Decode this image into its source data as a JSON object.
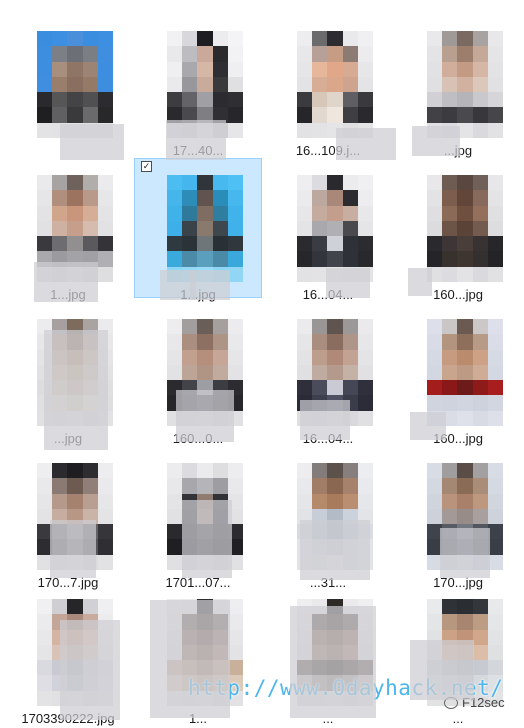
{
  "files": [
    {
      "name": "",
      "selected": false,
      "colors": [
        "#3b8de0",
        "#3d8fe2",
        "#4a8fd9",
        "#3b8de0",
        "#3d8fe2",
        "#3e8ee0",
        "#7c7f86",
        "#6c6f75",
        "#7b7e83",
        "#3f8ee0",
        "#3d8ee0",
        "#a88e7c",
        "#8f7565",
        "#9b8474",
        "#3d8ee0",
        "#3f8ee0",
        "#9a7e6c",
        "#8a6f60",
        "#957a68",
        "#3e8ee0",
        "#2a2a2e",
        "#565656",
        "#444447",
        "#505052",
        "#2c2c30",
        "#1f1f22",
        "#606062",
        "#3a3a3c",
        "#6a6a6c",
        "#28282b",
        "#e3e3e6",
        "#e2e2e5",
        "#e4e4e7",
        "#e1e1e4",
        "#e3e3e6"
      ]
    },
    {
      "name": "17...40...",
      "selected": false,
      "colors": [
        "#f1f1f3",
        "#d8d8dc",
        "#1e1e22",
        "#ececef",
        "#f4f4f6",
        "#e9e9ec",
        "#bdbdc1",
        "#caa99a",
        "#2a2a2d",
        "#f2f2f4",
        "#efeff2",
        "#a9a9ad",
        "#d6b6a5",
        "#2f2f33",
        "#efeff1",
        "#eaeaed",
        "#98989c",
        "#c9ab9b",
        "#3a3a3d",
        "#e0e0e3",
        "#3d3d41",
        "#646468",
        "#a0a0a4",
        "#2c2c30",
        "#2f2f33",
        "#2a2a2e",
        "#4a4a4e",
        "#7f7f83",
        "#303034",
        "#27272b",
        "#dcdce0",
        "#d2d2d6",
        "#e5e5e8",
        "#cfcfd3",
        "#e6e6e9"
      ]
    },
    {
      "name": "16...109.j...",
      "selected": false,
      "colors": [
        "#ededf0",
        "#6b6b6e",
        "#2d2d31",
        "#e9e9ec",
        "#f0f0f2",
        "#e8e8eb",
        "#b7a097",
        "#c69d84",
        "#8c7b72",
        "#ececef",
        "#e6e6e9",
        "#e6b79a",
        "#e0a888",
        "#d7aa94",
        "#e7e7ea",
        "#e3e3e6",
        "#d7ad96",
        "#dba78b",
        "#cfa48f",
        "#e4e4e7",
        "#3b3b3f",
        "#d7c7b9",
        "#e0d5cb",
        "#5f5f63",
        "#3a3a3e",
        "#26262a",
        "#e1d8cf",
        "#efe6de",
        "#3f3f43",
        "#2a2a2e",
        "#e2e2e5",
        "#e3e3e6",
        "#e5e5e8",
        "#e0e0e3",
        "#e4e4e7"
      ]
    },
    {
      "name": "...jpg",
      "selected": false,
      "colors": [
        "#e9e9ec",
        "#9f9a98",
        "#7a6a61",
        "#a8a3a1",
        "#e8e8eb",
        "#e4e4e7",
        "#b99f90",
        "#9d7d6c",
        "#c4a898",
        "#e5e5e8",
        "#e2e2e5",
        "#d0ae9b",
        "#c39a84",
        "#d6b7a6",
        "#e3e3e6",
        "#e0e0e3",
        "#d8c2b6",
        "#d1b1a0",
        "#dcc7bb",
        "#e1e1e4",
        "#d1d1d5",
        "#bfbfc3",
        "#b5b5b9",
        "#c9c9cd",
        "#d6d6da",
        "#414146",
        "#3c3c40",
        "#4a4a4e",
        "#38383c",
        "#45454a",
        "#e1e1e4",
        "#dcdce0",
        "#e4e4e7",
        "#dadade",
        "#e2e2e5"
      ]
    },
    {
      "name": "1...jpg",
      "selected": false,
      "colors": [
        "#eaeaed",
        "#a6a3a2",
        "#6f625c",
        "#b1adab",
        "#ebebee",
        "#e6e6e9",
        "#b08f7e",
        "#9b735e",
        "#b8998a",
        "#e7e7ea",
        "#e3e3e6",
        "#d1a58c",
        "#c9967b",
        "#d6ae98",
        "#e4e4e7",
        "#e1e1e4",
        "#cfb1a1",
        "#c59f8b",
        "#d5bcaf",
        "#e2e2e5",
        "#3a3a3e",
        "#6d6d71",
        "#918f8f",
        "#5a5a5e",
        "#343438",
        "#a9a9ad",
        "#9b9b9f",
        "#a3a3a7",
        "#a1a1a5",
        "#b0b0b4",
        "#dddde0",
        "#d8d8dc",
        "#e0e0e3",
        "#d6d6da",
        "#dedee1"
      ]
    },
    {
      "name": "1...jpg",
      "selected": true,
      "colors": [
        "#4cbdf1",
        "#45b6ee",
        "#30353a",
        "#48b9ef",
        "#4fc0f3",
        "#45b5ec",
        "#2d8cb8",
        "#61544e",
        "#2a8cb9",
        "#47b8ee",
        "#3fb2ea",
        "#2f7a9b",
        "#7f6d61",
        "#2f7d9f",
        "#41b3eb",
        "#3eb0e9",
        "#394349",
        "#8a7a6d",
        "#3e474d",
        "#40b1ea",
        "#2f3a40",
        "#2c3338",
        "#6f767a",
        "#2a3136",
        "#30383d",
        "#3aa9dc",
        "#4c8ba7",
        "#5a9fbd",
        "#4a8aa6",
        "#3ba8dc",
        "#8fd6f5",
        "#94d8f6",
        "#9bdbf7",
        "#8ed5f5",
        "#91d7f5"
      ]
    },
    {
      "name": "16...04...",
      "selected": false,
      "colors": [
        "#eeeef1",
        "#dcdce0",
        "#2a2a2e",
        "#ececef",
        "#f0f0f2",
        "#ebebee",
        "#bca89e",
        "#a9887a",
        "#2c2c30",
        "#ededf0",
        "#e7e7ea",
        "#c5ab9d",
        "#c39e8c",
        "#c7aea1",
        "#e8e8eb",
        "#e4e4e7",
        "#a9a9ad",
        "#b0b0b4",
        "#4a4a4e",
        "#e5e5e8",
        "#2b2b2f",
        "#3a3c44",
        "#cfd1d8",
        "#2f3139",
        "#2c2c30",
        "#27272b",
        "#33353d",
        "#42444c",
        "#2f3139",
        "#29292d",
        "#e2e2e5",
        "#e3e3e6",
        "#e5e5e8",
        "#e1e1e4",
        "#e4e4e7"
      ]
    },
    {
      "name": "160...jpg",
      "selected": false,
      "colors": [
        "#e8e8eb",
        "#6e5b51",
        "#5a4840",
        "#70605a",
        "#e7e7ea",
        "#e3e3e6",
        "#7d5e4e",
        "#62463a",
        "#876a5b",
        "#e4e4e7",
        "#dfdfe2",
        "#8c6a58",
        "#6f4f3f",
        "#936f5c",
        "#e0e0e3",
        "#dcdcdf",
        "#6c5447",
        "#5b4337",
        "#735b4f",
        "#dddde0",
        "#2a2a2e",
        "#3e3636",
        "#4a3e3a",
        "#383233",
        "#27272b",
        "#252529",
        "#38322f",
        "#3e3531",
        "#343030",
        "#242428",
        "#e0e0e3",
        "#dcdce0",
        "#e3e3e6",
        "#dadade",
        "#e1e1e4"
      ]
    },
    {
      "name": "...jpg",
      "selected": false,
      "colors": [
        "#ececef",
        "#a6a0a0",
        "#7d6b5e",
        "#a9a3a1",
        "#ebebee",
        "#e7e7ea",
        "#b69d8b",
        "#8e7463",
        "#bba596",
        "#e8e8eb",
        "#e4e4e7",
        "#c3ab97",
        "#b8987f",
        "#c9b3a1",
        "#e5e5e8",
        "#e1e1e4",
        "#d0bca9",
        "#c7af98",
        "#d4c3b2",
        "#e2e2e5",
        "#dddde0",
        "#d6c9bb",
        "#cdbba9",
        "#dbcdc0",
        "#dfdfe2",
        "#e0e0e3",
        "#e4dbd2",
        "#dccfc2",
        "#e6ddd5",
        "#dedee1",
        "#e1e1e4",
        "#dfdfe2",
        "#e3e3e6",
        "#dcdcdf",
        "#e2e2e5"
      ]
    },
    {
      "name": "160...0...",
      "selected": false,
      "colors": [
        "#ededf0",
        "#a29e9e",
        "#6a5e58",
        "#a5a09e",
        "#ececef",
        "#e8e8eb",
        "#aa8f80",
        "#8d7062",
        "#ae9485",
        "#e9e9ec",
        "#e5e5e8",
        "#c1a090",
        "#b68f7c",
        "#c6a696",
        "#e6e6e9",
        "#e2e2e5",
        "#bca497",
        "#b09484",
        "#c1aa9e",
        "#e3e3e6",
        "#2b2b2f",
        "#43434a",
        "#9d9da4",
        "#3c3c43",
        "#2d2d31",
        "#26262a",
        "#3a3a40",
        "#4a4a50",
        "#36363b",
        "#28282c",
        "#e0e0e3",
        "#dedee1",
        "#e3e3e6",
        "#dbdbdf",
        "#e1e1e4"
      ]
    },
    {
      "name": "16...04...",
      "selected": false,
      "colors": [
        "#ebebee",
        "#9a9696",
        "#5f5450",
        "#9d9898",
        "#eaeaed",
        "#e6e6e9",
        "#a98e80",
        "#8a6d5e",
        "#ae9587",
        "#e7e7ea",
        "#e3e3e6",
        "#bd9d8c",
        "#b08978",
        "#c2a393",
        "#e4e4e7",
        "#e0e0e3",
        "#c0aba0",
        "#b39a8c",
        "#c5b2a7",
        "#e1e1e4",
        "#2e2f3a",
        "#4a4c5c",
        "#c9cad3",
        "#454756",
        "#2f303b",
        "#2a2b36",
        "#3d3f4e",
        "#4f5162",
        "#3a3c4a",
        "#2b2c37",
        "#dfdfe2",
        "#dcdce0",
        "#e2e2e5",
        "#d9d9dd",
        "#e0e0e3"
      ]
    },
    {
      "name": "160...jpg",
      "selected": false,
      "colors": [
        "#dde0ea",
        "#cbc6c6",
        "#6b5a52",
        "#cdc8c8",
        "#dde0ea",
        "#d9dce7",
        "#b3957f",
        "#8e6f5b",
        "#b89b86",
        "#dadde8",
        "#d5d9e4",
        "#c79b7f",
        "#bb8b6e",
        "#cca185",
        "#d6dae5",
        "#d3d7e2",
        "#c9a58e",
        "#bd9a83",
        "#ceac96",
        "#d4d8e3",
        "#a31d1d",
        "#8b1818",
        "#6c1a1a",
        "#8f1a1a",
        "#a81e1e",
        "#d0d4df",
        "#cfd3de",
        "#d1d5e0",
        "#ced2dd",
        "#d2d6e1",
        "#dcdfe8",
        "#dadde6",
        "#dee1ea",
        "#d8dbe4",
        "#dde0e9"
      ]
    },
    {
      "name": "170...7.jpg",
      "selected": false,
      "colors": [
        "#eeeef0",
        "#2b2b2f",
        "#1e1e22",
        "#2d2d31",
        "#ededf0",
        "#e9e9ec",
        "#8b7a73",
        "#6d5b52",
        "#8f7f78",
        "#eaeaed",
        "#e6e6e9",
        "#b59a8b",
        "#a4826f",
        "#b99f91",
        "#e7e7ea",
        "#e3e3e6",
        "#c6ad9f",
        "#b79886",
        "#cab4a8",
        "#e4e4e7",
        "#3a3a3e",
        "#6c6c70",
        "#8f8d8e",
        "#646468",
        "#36363a",
        "#2d2d31",
        "#5a5a5e",
        "#7a787a",
        "#56565a",
        "#2f2f33",
        "#e1e1e4",
        "#dfdfe2",
        "#e4e4e7",
        "#dcdcdf",
        "#e2e2e5"
      ]
    },
    {
      "name": "1701...07...",
      "selected": false,
      "colors": [
        "#ececef",
        "#dcdce0",
        "#ebebee",
        "#dedee1",
        "#ededf0",
        "#e8e8eb",
        "#a8a8ac",
        "#b5b5b9",
        "#9e9ea2",
        "#e9e9ec",
        "#e4e4e7",
        "#333337",
        "#8f7b70",
        "#323236",
        "#e5e5e8",
        "#e1e1e4",
        "#2d2d31",
        "#a18a7c",
        "#2e2e32",
        "#e2e2e5",
        "#2a2a2e",
        "#222226",
        "#3a3a3e",
        "#242428",
        "#2c2c30",
        "#1f1f23",
        "#1c1c20",
        "#2b2b2f",
        "#1e1e22",
        "#202024",
        "#e0e0e3",
        "#dcdce0",
        "#e3e3e6",
        "#dadade",
        "#e1e1e4"
      ]
    },
    {
      "name": "...31...",
      "selected": false,
      "colors": [
        "#ededf0",
        "#827c7b",
        "#5d514c",
        "#867f7e",
        "#ecedf0",
        "#e8e9ec",
        "#a17d67",
        "#8a6750",
        "#a6826c",
        "#e9eaed",
        "#e5e6e9",
        "#b58a6b",
        "#a77b5c",
        "#ba8f71",
        "#e6e7ea",
        "#e2e3e6",
        "#c7ced8",
        "#b3bbc7",
        "#cbd2dc",
        "#e3e4e7",
        "#d6dbe3",
        "#c2c9d3",
        "#b0b8c4",
        "#c6cdd7",
        "#d8dde5",
        "#e0e3e8",
        "#d5dae2",
        "#cdd3dc",
        "#d9dee5",
        "#e1e4e9",
        "#e2e3e6",
        "#dfe0e3",
        "#e4e5e8",
        "#dcdde0",
        "#e3e4e7"
      ]
    },
    {
      "name": "170...jpg",
      "selected": false,
      "colors": [
        "#d8dde5",
        "#a09d9f",
        "#5a4d47",
        "#a3a0a2",
        "#d8dde5",
        "#d4d9e1",
        "#a58873",
        "#8a6b56",
        "#aa8d78",
        "#d5dae2",
        "#d0d5dd",
        "#b9937b",
        "#a9816a",
        "#bd987f",
        "#d1d6de",
        "#cdd2da",
        "#a39a98",
        "#978c88",
        "#a8a09e",
        "#ced3db",
        "#3e434c",
        "#565b64",
        "#737780",
        "#51565f",
        "#3c414a",
        "#383d46",
        "#4a4f58",
        "#5d626b",
        "#474c55",
        "#393e47",
        "#d7dbe3",
        "#d3d7df",
        "#dadee6",
        "#d1d5dd",
        "#d8dce4"
      ]
    },
    {
      "name": "1703390222.jpg",
      "selected": false,
      "colors": [
        "#f0f0f2",
        "#cfcfd3",
        "#262629",
        "#d1d1d5",
        "#efeff1",
        "#ebebed",
        "#c4a699",
        "#a98a7c",
        "#c9ab9e",
        "#ececef",
        "#e8e8eb",
        "#d6b4a3",
        "#c9a28e",
        "#dab9a9",
        "#e9e9ec",
        "#e5e5e8",
        "#d9c2b6",
        "#ceb3a5",
        "#ddc7bc",
        "#e6e6e9",
        "#d9d9e0",
        "#c9c9d2",
        "#b8b8c2",
        "#cfcfd7",
        "#dcdce3",
        "#dedee4",
        "#d2d2da",
        "#c5c5cf",
        "#d5d5dc",
        "#dfdfe5",
        "#e3e3e6",
        "#e1e1e4",
        "#e5e5e8",
        "#dedee1",
        "#e4e4e7"
      ]
    },
    {
      "name": "1...",
      "selected": false,
      "colors": [
        "#ededf0",
        "#e9e9ec",
        "#2d2d31",
        "#e8e8eb",
        "#eeeef1",
        "#e9e9ec",
        "#6c5a50",
        "#4f3e34",
        "#705f55",
        "#eaeaed",
        "#e5e5e8",
        "#8a6e5f",
        "#74584a",
        "#8f7465",
        "#e6e6e9",
        "#e2e2e5",
        "#9c7d69",
        "#8a6b58",
        "#a0826f",
        "#e3e3e6",
        "#c6ad96",
        "#b49a82",
        "#a38a74",
        "#b9a08a",
        "#c9b09a",
        "#dac8b6",
        "#ccb8a4",
        "#c2ad98",
        "#cfbba7",
        "#dccab9",
        "#e1e1e4",
        "#dfdfe2",
        "#e4e4e7",
        "#dcdcdf",
        "#e2e2e5"
      ]
    },
    {
      "name": "...",
      "selected": false,
      "colors": [
        "#eeeef0",
        "#e9e9eb",
        "#2e2a28",
        "#eaeaec",
        "#efeff1",
        "#eaeaec",
        "#5e4b40",
        "#4a3a30",
        "#625044",
        "#ebebed",
        "#e6e6e8",
        "#8a6c58",
        "#7a5d4a",
        "#8f715e",
        "#e7e7e9",
        "#e3e3e5",
        "#9b7e6a",
        "#8d705c",
        "#a0836f",
        "#e4e4e6",
        "#6a5a50",
        "#4d4038",
        "#3e342e",
        "#52453c",
        "#6d5d53",
        "#c6beb8",
        "#a89e97",
        "#988e87",
        "#ada39c",
        "#c9c1bb",
        "#e1e1e3",
        "#dfdfe1",
        "#e4e4e6",
        "#dcdcde",
        "#e2e2e4"
      ]
    },
    {
      "name": "...",
      "selected": false,
      "colors": [
        "#e9eaec",
        "#2f3337",
        "#2a2e32",
        "#33373b",
        "#e8e9eb",
        "#e4e5e7",
        "#b8977f",
        "#a78570",
        "#bd9c84",
        "#e5e6e8",
        "#e1e2e4",
        "#cca286",
        "#c19479",
        "#d0a78b",
        "#e2e3e5",
        "#dedfe1",
        "#d7b8a3",
        "#cfab94",
        "#dbbda8",
        "#dfe0e2",
        "#d0d3d8",
        "#c3c7cd",
        "#b8bcc3",
        "#c7cbd1",
        "#d3d6db",
        "#dcdfe3",
        "#d3d6db",
        "#cbcfd4",
        "#d6d9dd",
        "#dde0e4",
        "#e1e2e4",
        "#dfe0e2",
        "#e4e5e7",
        "#dcdddf",
        "#e2e3e5"
      ]
    }
  ],
  "watermark": "http://www.0dayhack.net/",
  "wechat_label": "F12sec"
}
